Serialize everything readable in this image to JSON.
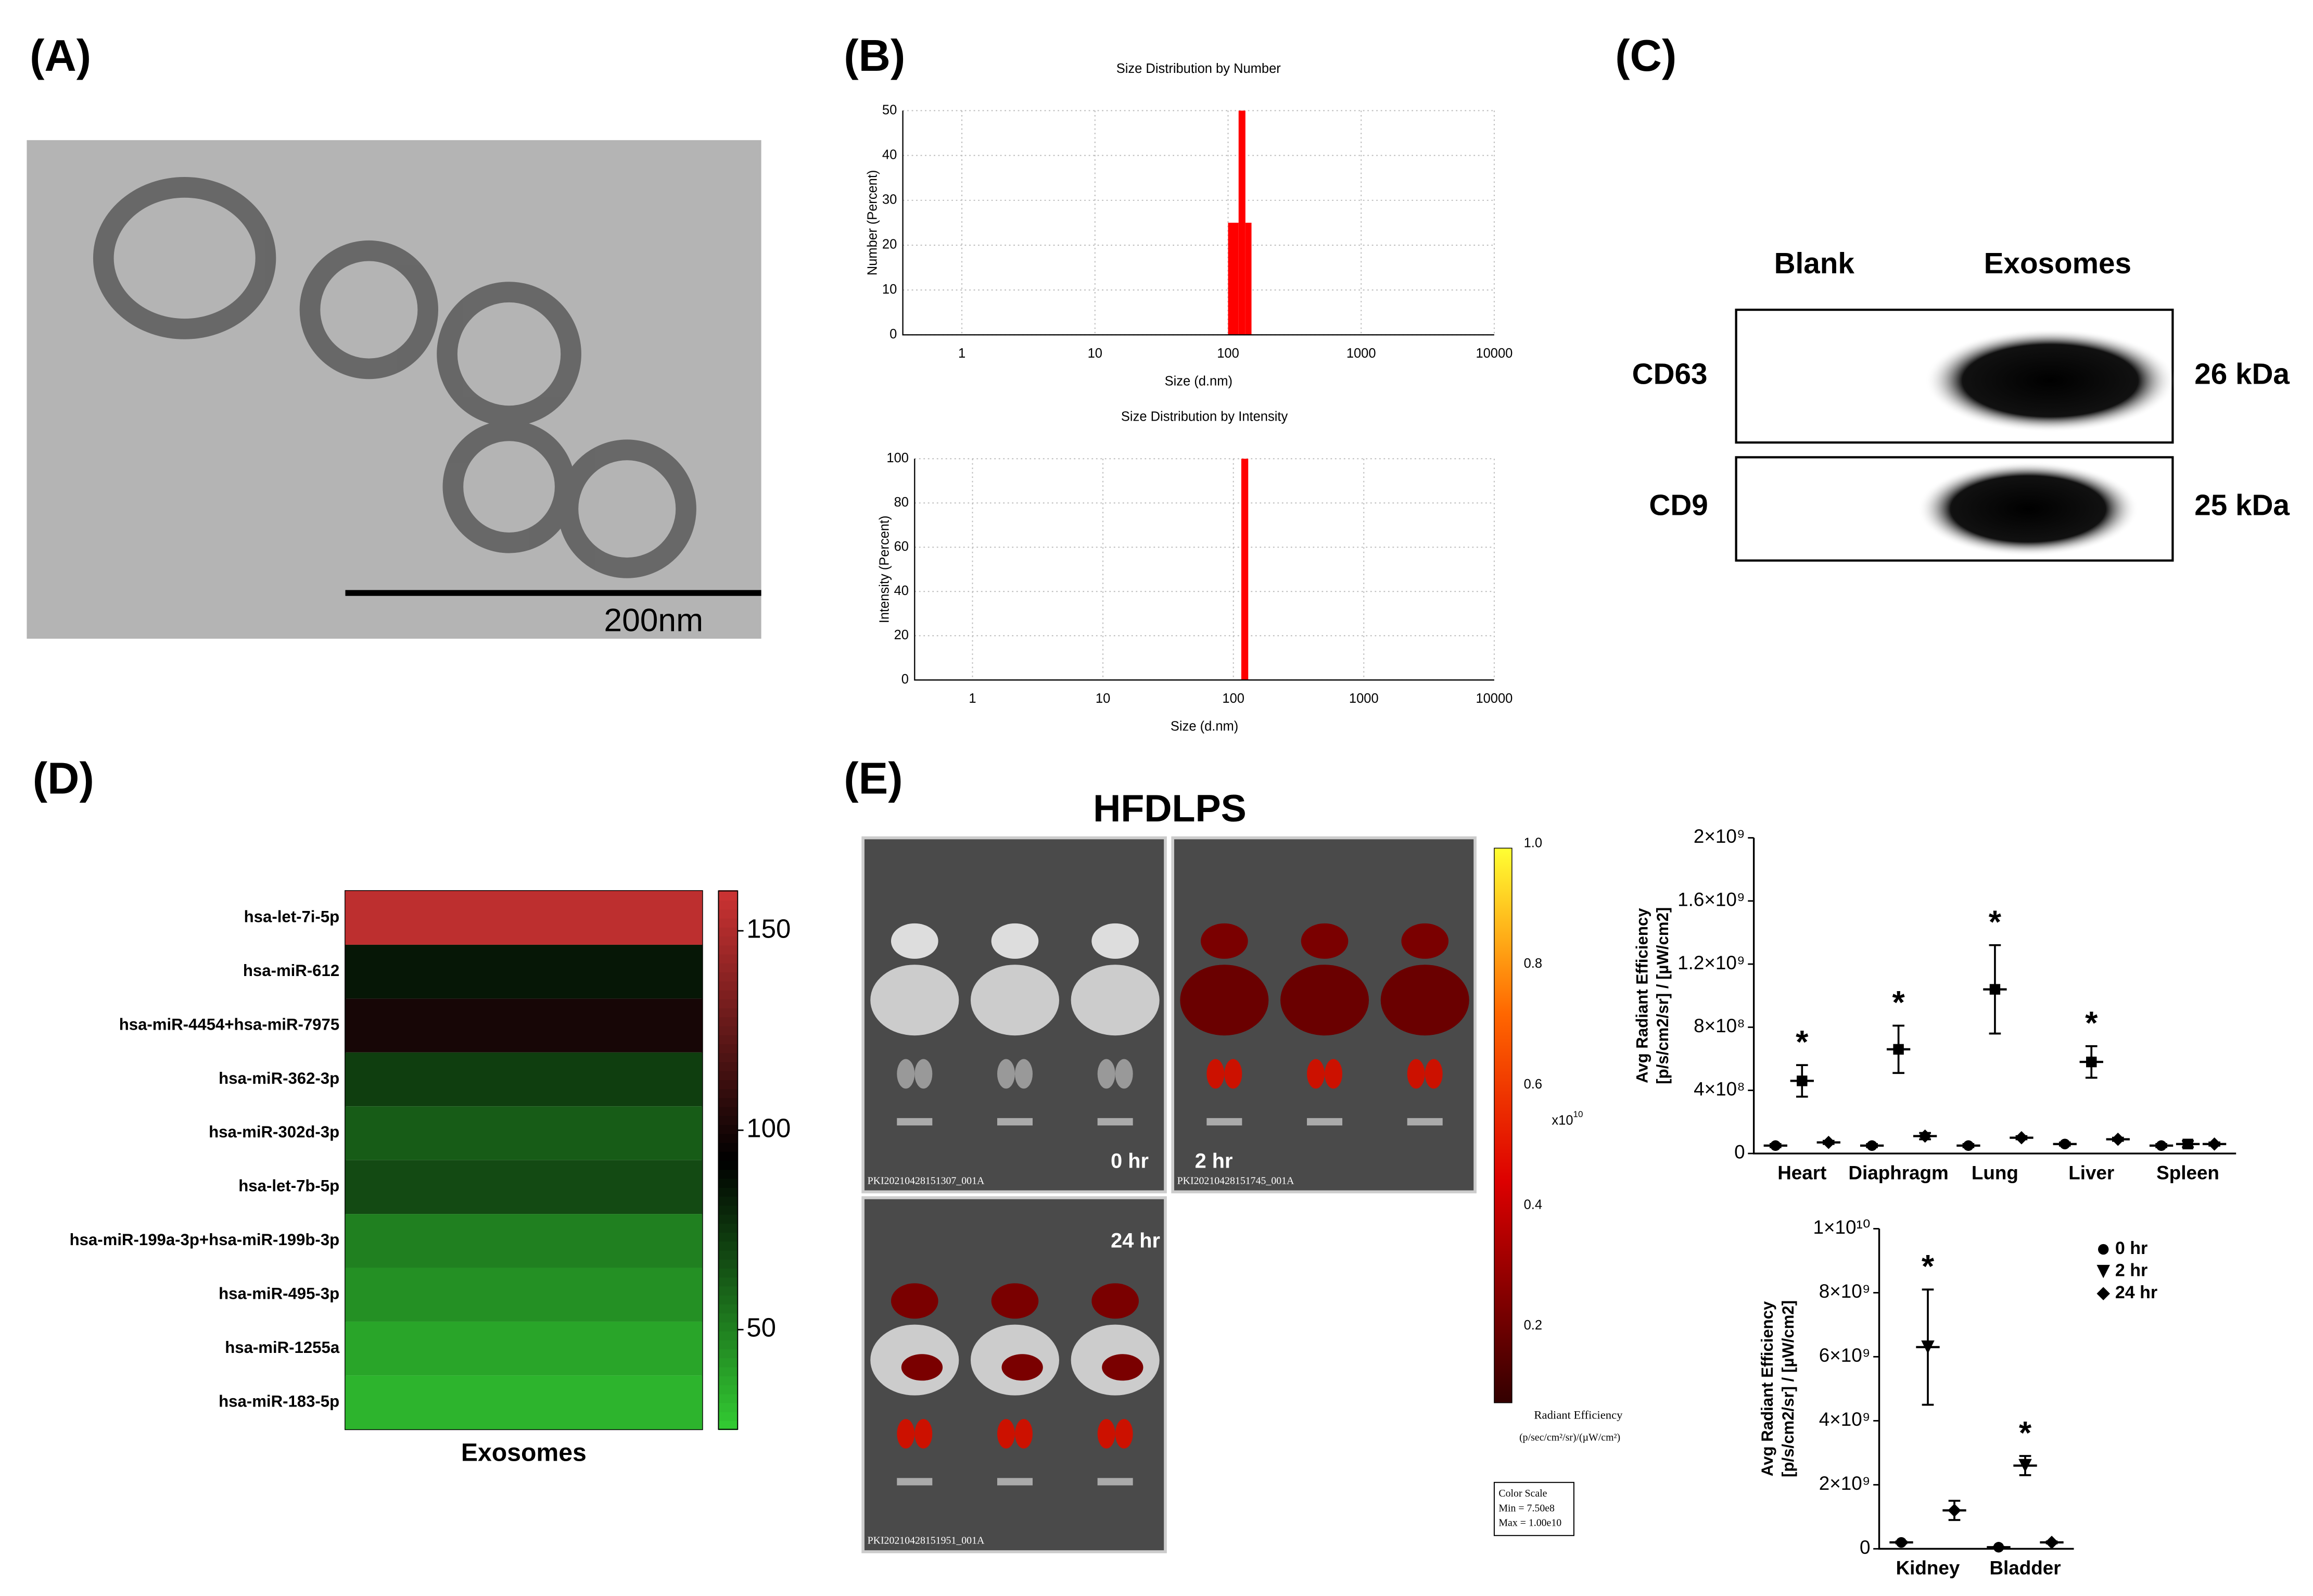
{
  "panel_labels": [
    "(A)",
    "(B)",
    "(C)",
    "(D)",
    "(E)"
  ],
  "tem": {
    "scale_label": "200nm"
  },
  "blot": {
    "columns": [
      "Blank",
      "Exosomes"
    ],
    "rows": [
      {
        "name": "CD63",
        "size": "26 kDa"
      },
      {
        "name": "CD9",
        "size": "25 kDa"
      }
    ]
  },
  "imaging": {
    "title": "HFDLPS",
    "panels": [
      {
        "time": "0 hr",
        "id": "PKI20210428151307_001A"
      },
      {
        "time": "2 hr",
        "id": "PKI20210428151745_001A"
      },
      {
        "time": "24 hr",
        "id": "PKI20210428151951_001A"
      }
    ],
    "scale_ticks": [
      "1.0",
      "0.8",
      "0.6",
      "0.4",
      "0.2"
    ],
    "scale_exponent": "x10",
    "scale_exponent_power": "10",
    "scale_label": "Radiant Efficiency",
    "scale_unit": "(p/sec/cm²/sr)/(µW/cm²)",
    "color_scale": [
      "Color Scale",
      "Min = 7.50e8",
      "Max = 1.00e10"
    ]
  },
  "chart_data": [
    {
      "type": "histogram",
      "title": "Size Distribution by Number",
      "x_label": "Size (d.nm)",
      "y_label": "Number (Percent)",
      "bins": [
        100,
        120,
        135,
        150
      ],
      "values": [
        25,
        50,
        25
      ],
      "color": "#ff0000",
      "log_x": true,
      "grid": true,
      "xlim": [
        0.36,
        10000
      ],
      "xticks": [
        1,
        10,
        100,
        1000,
        10000
      ],
      "ylim": [
        0,
        50
      ],
      "yticks": [
        0,
        10,
        20,
        30,
        40,
        50
      ]
    },
    {
      "type": "histogram",
      "title": "Size Distribution by Intensity",
      "x_label": "Size (d.nm)",
      "y_label": "Intensity (Percent)",
      "bins": [
        115,
        130
      ],
      "values": [
        100
      ],
      "color": "#ff0000",
      "log_x": true,
      "grid": true,
      "xlim": [
        0.36,
        10000
      ],
      "xticks": [
        1,
        10,
        100,
        1000,
        10000
      ],
      "ylim": [
        0,
        100
      ],
      "yticks": [
        0,
        20,
        40,
        60,
        80,
        100
      ]
    },
    {
      "type": "heatmap",
      "categories": [
        "hsa-let-7i-5p",
        "hsa-miR-612",
        "hsa-miR-4454+hsa-miR-7975",
        "hsa-miR-362-3p",
        "hsa-miR-302d-3p",
        "hsa-let-7b-5p",
        "hsa-miR-199a-3p+hsa-miR-199b-3p",
        "hsa-miR-495-3p",
        "hsa-miR-1255a",
        "hsa-miR-183-5p"
      ],
      "x_categories": [
        "Exosomes"
      ],
      "values": [
        155,
        85,
        100,
        72,
        62,
        68,
        50,
        45,
        38,
        33
      ],
      "colors": [
        "#33cc33",
        "#000000",
        "#cc3333"
      ],
      "clim": [
        25,
        160
      ],
      "cticks": [
        50,
        100,
        150
      ]
    },
    {
      "type": "dot",
      "y_label": [
        "Avg Radiant Efficiency",
        "[p/s/cm2/sr] / [µW/cm2]"
      ],
      "categories": [
        "Heart",
        "Diaphragm",
        "Lung",
        "Liver",
        "Spleen"
      ],
      "series": [
        {
          "name": "0 hr",
          "marker": "circle",
          "color": "#000000",
          "values": [
            50000000,
            50000000,
            50000000,
            60000000,
            50000000
          ],
          "errors": [
            10000000,
            10000000,
            10000000,
            10000000,
            10000000
          ]
        },
        {
          "name": "2 hr",
          "marker": "square",
          "color": "#000000",
          "values": [
            460000000,
            660000000,
            1040000000,
            580000000,
            60000000
          ],
          "errors": [
            100000000,
            150000000,
            280000000,
            100000000,
            20000000
          ]
        },
        {
          "name": "24 hr",
          "marker": "diamond",
          "color": "#000000",
          "values": [
            70000000,
            110000000,
            100000000,
            90000000,
            60000000
          ],
          "errors": [
            10000000,
            20000000,
            10000000,
            10000000,
            10000000
          ]
        }
      ],
      "annotations": [
        "*",
        "*",
        "*",
        "*",
        null
      ],
      "ylim": [
        0,
        2000000000
      ],
      "yticks": [
        0,
        {
          "value": 400000000,
          "label": "4×10⁸"
        },
        {
          "value": 800000000,
          "label": "8×10⁸"
        },
        {
          "value": 1200000000,
          "label": "1.2×10⁹"
        },
        {
          "value": 1600000000,
          "label": "1.6×10⁹"
        },
        {
          "value": 2000000000,
          "label": "2×10⁹"
        }
      ]
    },
    {
      "type": "dot",
      "y_label": [
        "Avg Radiant Efficiency",
        "[p/s/cm2/sr] / [µW/cm2]"
      ],
      "categories": [
        "Kidney",
        "Bladder"
      ],
      "series": [
        {
          "name": "0 hr",
          "marker": "circle",
          "color": "#000000",
          "values": [
            200000000,
            50000000
          ],
          "errors": [
            30000000,
            10000000
          ]
        },
        {
          "name": "2 hr",
          "marker": "triangle",
          "color": "#000000",
          "values": [
            6300000000,
            2600000000
          ],
          "errors": [
            1800000000,
            300000000
          ]
        },
        {
          "name": "24 hr",
          "marker": "diamond",
          "color": "#000000",
          "values": [
            1200000000,
            200000000
          ],
          "errors": [
            300000000,
            30000000
          ]
        }
      ],
      "annotations": [
        "*",
        "*"
      ],
      "legend": "right",
      "ylim": [
        0,
        10000000000
      ],
      "yticks": [
        0,
        {
          "value": 2000000000,
          "label": "2×10⁹"
        },
        {
          "value": 4000000000,
          "label": "4×10⁹"
        },
        {
          "value": 6000000000,
          "label": "6×10⁹"
        },
        {
          "value": 8000000000,
          "label": "8×10⁹"
        },
        {
          "value": 10000000000,
          "label": "1×10¹⁰"
        }
      ]
    }
  ]
}
